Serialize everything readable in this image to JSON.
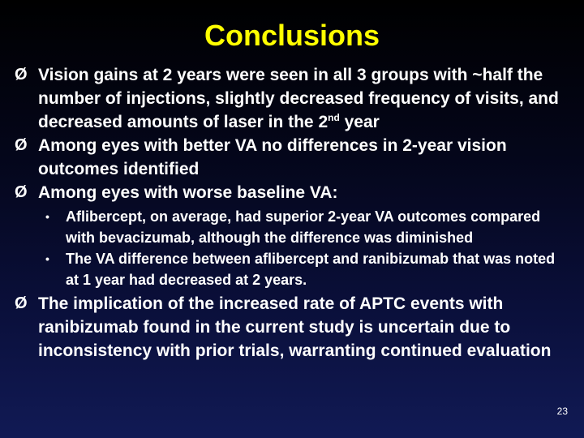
{
  "title": "Conclusions",
  "bullet_marker": "Ø",
  "sub_marker": "•",
  "bullets": [
    {
      "before": "Vision gains at 2 years were seen in all 3 groups with ~half the number of injections, slightly decreased frequency of visits, and decreased amounts of laser in the 2",
      "superscript": "nd",
      "after": " year"
    },
    {
      "text": "Among eyes with better VA no differences in 2-year vision outcomes identified"
    },
    {
      "text": "Among eyes with worse baseline VA:"
    },
    {
      "text": "The implication of the increased rate of APTC events with ranibizumab found in the current study is uncertain due to inconsistency with prior trials, warranting continued evaluation"
    }
  ],
  "sub_bullets": [
    {
      "text": "Aflibercept, on average, had superior 2-year VA outcomes compared with bevacizumab, although the difference was diminished"
    },
    {
      "text": "The VA difference between aflibercept and ranibizumab that was noted at 1 year had decreased at 2 years."
    }
  ],
  "page_number": "23"
}
